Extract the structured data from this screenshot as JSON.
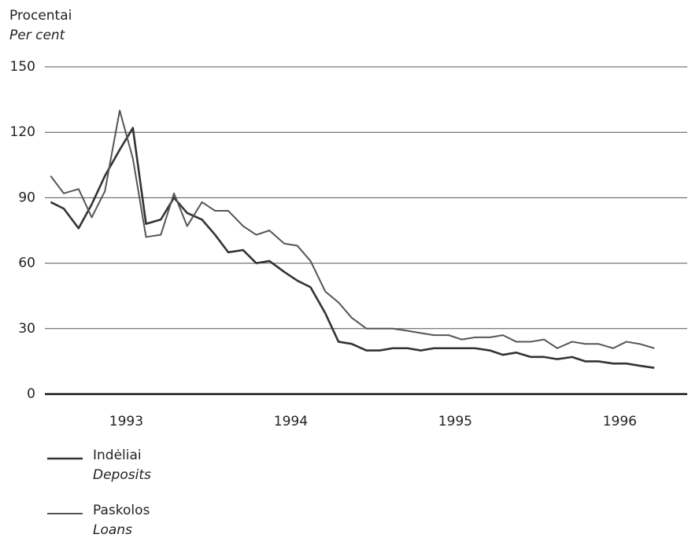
{
  "chart_data": {
    "type": "line",
    "y_label": "Procentai",
    "y_label_en": "Per cent",
    "x": [
      1992.54,
      1992.62,
      1992.71,
      1992.79,
      1992.87,
      1992.96,
      1993.04,
      1993.12,
      1993.21,
      1993.29,
      1993.37,
      1993.46,
      1993.54,
      1993.62,
      1993.71,
      1993.79,
      1993.87,
      1993.96,
      1994.04,
      1994.12,
      1994.21,
      1994.29,
      1994.37,
      1994.46,
      1994.54,
      1994.62,
      1994.71,
      1994.79,
      1994.87,
      1994.96,
      1995.04,
      1995.12,
      1995.21,
      1995.29,
      1995.37,
      1995.46,
      1995.54,
      1995.62,
      1995.71,
      1995.79,
      1995.87,
      1995.96,
      1996.04,
      1996.12,
      1996.21
    ],
    "series": [
      {
        "name": "Indėliai",
        "name_en": "Deposits",
        "color": "#333333",
        "values": [
          88,
          85,
          76,
          87,
          100,
          112,
          122,
          78,
          80,
          90,
          83,
          80,
          73,
          65,
          66,
          60,
          61,
          56,
          52,
          49,
          37,
          24,
          23,
          20,
          20,
          21,
          21,
          20,
          21,
          21,
          21,
          21,
          20,
          18,
          19,
          17,
          17,
          16,
          17,
          15,
          15,
          14,
          14,
          13,
          12
        ]
      },
      {
        "name": "Paskolos",
        "name_en": "Loans",
        "color": "#555555",
        "values": [
          100,
          92,
          94,
          81,
          93,
          130,
          108,
          72,
          73,
          92,
          77,
          88,
          84,
          84,
          77,
          73,
          75,
          69,
          68,
          61,
          47,
          42,
          35,
          30,
          30,
          30,
          29,
          28,
          27,
          27,
          25,
          26,
          26,
          27,
          24,
          24,
          25,
          21,
          24,
          23,
          23,
          21,
          24,
          23,
          21
        ]
      }
    ],
    "xlim": [
      1992.505,
      1996.41
    ],
    "xticks": [
      1993,
      1994,
      1995,
      1996
    ],
    "ylim": [
      0,
      150
    ],
    "yticks": [
      0,
      30,
      60,
      90,
      120,
      150
    ],
    "grid": true
  }
}
